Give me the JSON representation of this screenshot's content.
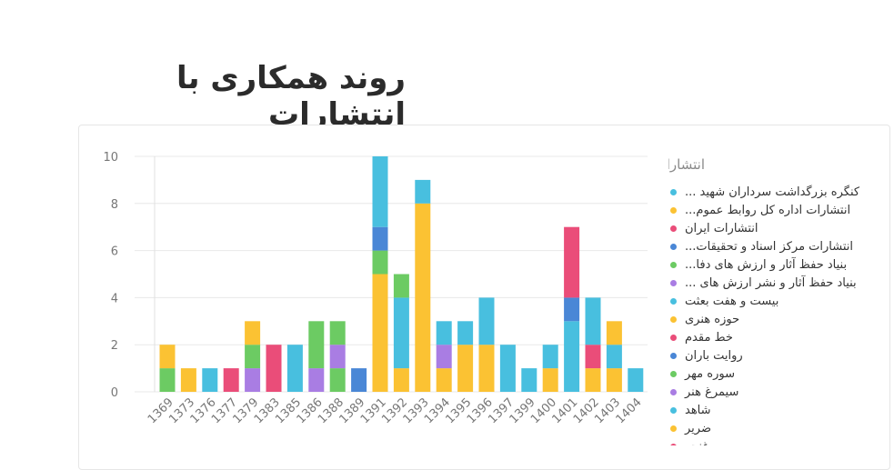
{
  "page": {
    "title": "روند همکاری با انتشارات"
  },
  "legend": {
    "title": "انتشارات",
    "items": [
      {
        "label": "کنگره بزرگداشت سرداران شهید ...",
        "color": "#48bfdf"
      },
      {
        "label": "انتشارات اداره کل روابط عموم...",
        "color": "#fbc233"
      },
      {
        "label": "انتشارات ایران",
        "color": "#ea4d79"
      },
      {
        "label": "انتشارات مرکز اسناد و تحقیقات...",
        "color": "#4a87d6"
      },
      {
        "label": "بنیاد حفظ آثار و ارزش های دفا...",
        "color": "#6ccb63"
      },
      {
        "label": "بنیاد حفظ آثار و نشر ارزش های ...",
        "color": "#a97de3"
      },
      {
        "label": "بیست و هفت بعثت",
        "color": "#48bfdf"
      },
      {
        "label": "حوزه هنری",
        "color": "#fbc233"
      },
      {
        "label": "خط مقدم",
        "color": "#ea4d79"
      },
      {
        "label": "روایت باران",
        "color": "#4a87d6"
      },
      {
        "label": "سوره مهر",
        "color": "#6ccb63"
      },
      {
        "label": "سیمرغ هنر",
        "color": "#a97de3"
      },
      {
        "label": "شاهد",
        "color": "#48bfdf"
      },
      {
        "label": "ضریر",
        "color": "#fbc233"
      },
      {
        "label": "غنچه",
        "color": "#ea4d79"
      }
    ]
  },
  "chart_data": {
    "type": "bar",
    "stacked": true,
    "categories": [
      "1369",
      "1373",
      "1376",
      "1377",
      "1379",
      "1383",
      "1385",
      "1386",
      "1388",
      "1389",
      "1391",
      "1392",
      "1393",
      "1394",
      "1395",
      "1396",
      "1397",
      "1399",
      "1400",
      "1401",
      "1402",
      "1403",
      "1404"
    ],
    "y_ticks": [
      0,
      2,
      4,
      6,
      8,
      10
    ],
    "ylim": [
      0,
      10
    ],
    "grid": true,
    "legend_position": "right",
    "stacks": [
      [
        {
          "value": 1,
          "color": "#6ccb63"
        },
        {
          "value": 1,
          "color": "#fbc233"
        }
      ],
      [
        {
          "value": 1,
          "color": "#fbc233"
        }
      ],
      [
        {
          "value": 1,
          "color": "#48bfdf"
        }
      ],
      [
        {
          "value": 1,
          "color": "#ea4d79"
        }
      ],
      [
        {
          "value": 1,
          "color": "#a97de3"
        },
        {
          "value": 1,
          "color": "#6ccb63"
        },
        {
          "value": 1,
          "color": "#fbc233"
        }
      ],
      [
        {
          "value": 2,
          "color": "#ea4d79"
        }
      ],
      [
        {
          "value": 2,
          "color": "#48bfdf"
        }
      ],
      [
        {
          "value": 1,
          "color": "#a97de3"
        },
        {
          "value": 2,
          "color": "#6ccb63"
        }
      ],
      [
        {
          "value": 1,
          "color": "#6ccb63"
        },
        {
          "value": 1,
          "color": "#a97de3"
        },
        {
          "value": 1,
          "color": "#6ccb63"
        }
      ],
      [
        {
          "value": 1,
          "color": "#4a87d6"
        }
      ],
      [
        {
          "value": 5,
          "color": "#fbc233"
        },
        {
          "value": 1,
          "color": "#6ccb63"
        },
        {
          "value": 1,
          "color": "#4a87d6"
        },
        {
          "value": 3,
          "color": "#48bfdf"
        }
      ],
      [
        {
          "value": 1,
          "color": "#fbc233"
        },
        {
          "value": 3,
          "color": "#48bfdf"
        },
        {
          "value": 1,
          "color": "#6ccb63"
        }
      ],
      [
        {
          "value": 8,
          "color": "#fbc233"
        },
        {
          "value": 1,
          "color": "#48bfdf"
        }
      ],
      [
        {
          "value": 1,
          "color": "#fbc233"
        },
        {
          "value": 1,
          "color": "#a97de3"
        },
        {
          "value": 1,
          "color": "#48bfdf"
        }
      ],
      [
        {
          "value": 2,
          "color": "#fbc233"
        },
        {
          "value": 1,
          "color": "#48bfdf"
        }
      ],
      [
        {
          "value": 2,
          "color": "#fbc233"
        },
        {
          "value": 2,
          "color": "#48bfdf"
        }
      ],
      [
        {
          "value": 2,
          "color": "#48bfdf"
        }
      ],
      [
        {
          "value": 1,
          "color": "#48bfdf"
        }
      ],
      [
        {
          "value": 1,
          "color": "#fbc233"
        },
        {
          "value": 1,
          "color": "#48bfdf"
        }
      ],
      [
        {
          "value": 3,
          "color": "#48bfdf"
        },
        {
          "value": 1,
          "color": "#4a87d6"
        },
        {
          "value": 3,
          "color": "#ea4d79"
        }
      ],
      [
        {
          "value": 1,
          "color": "#fbc233"
        },
        {
          "value": 1,
          "color": "#ea4d79"
        },
        {
          "value": 2,
          "color": "#48bfdf"
        }
      ],
      [
        {
          "value": 1,
          "color": "#fbc233"
        },
        {
          "value": 1,
          "color": "#48bfdf"
        },
        {
          "value": 1,
          "color": "#fbc233"
        }
      ],
      [
        {
          "value": 1,
          "color": "#48bfdf"
        }
      ]
    ]
  }
}
